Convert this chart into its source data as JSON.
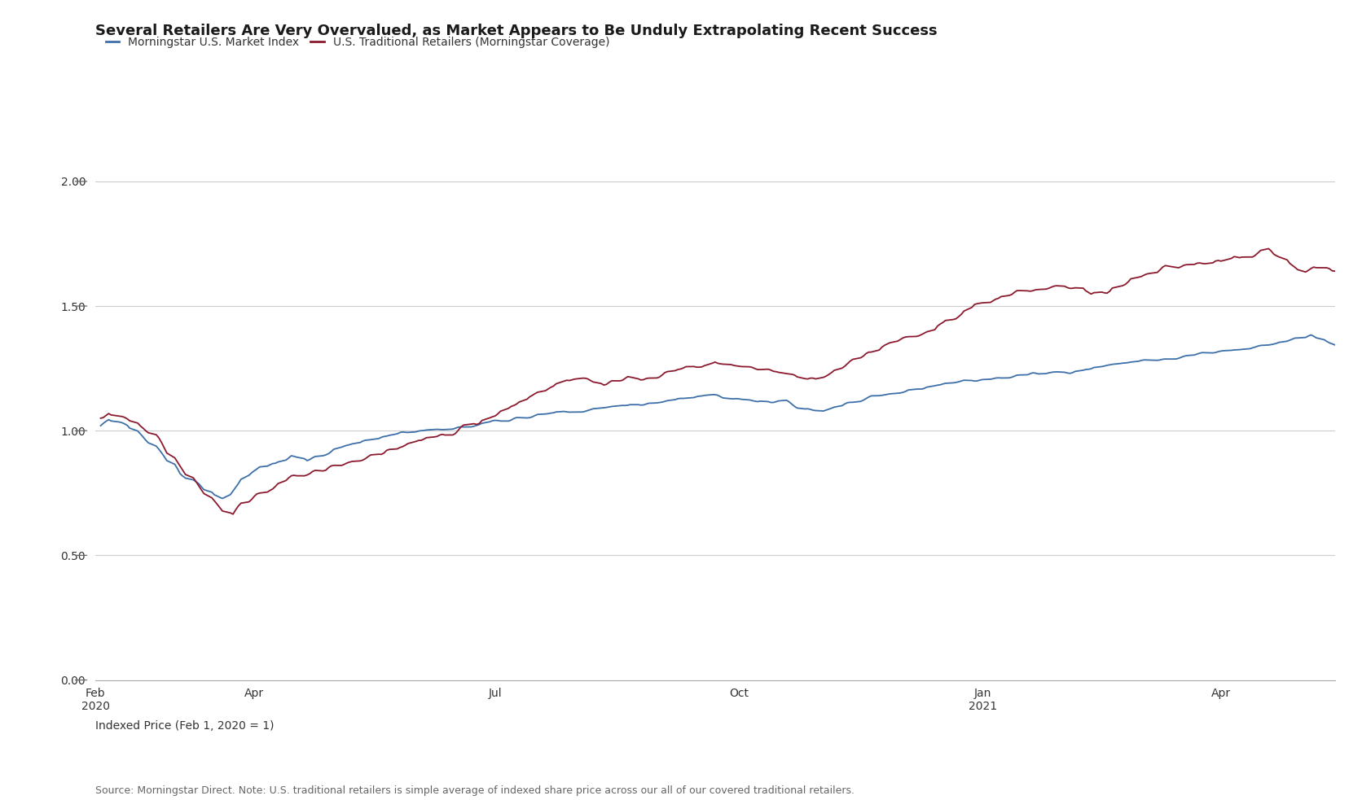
{
  "title": "Several Retailers Are Very Overvalued, as Market Appears to Be Unduly Extrapolating Recent Success",
  "legend_blue": "Morningstar U.S. Market Index",
  "legend_red": "U.S. Traditional Retailers (Morningstar Coverage)",
  "xlabel_bottom": "Indexed Price (Feb 1, 2020 = 1)",
  "source_text": "Source: Morningstar Direct. Note: U.S. traditional retailers is simple average of indexed share price across our all of our covered traditional retailers.",
  "blue_color": "#3d6fa8",
  "red_color": "#8b1a2e",
  "background_color": "#ffffff",
  "ylim": [
    0.0,
    2.15
  ],
  "yticks": [
    0.0,
    0.5,
    1.0,
    1.5,
    2.0
  ],
  "title_fontsize": 13,
  "legend_fontsize": 10,
  "axis_fontsize": 10,
  "source_fontsize": 9,
  "line_width": 1.3
}
